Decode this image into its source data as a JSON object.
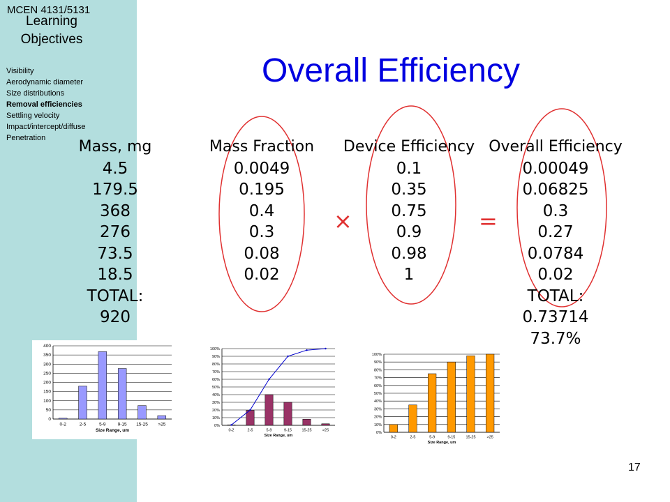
{
  "sidebar": {
    "course": "MCEN 4131/5131",
    "objectives_line1": "Learning",
    "objectives_line2": "Objectives",
    "items": [
      {
        "label": "Visibility",
        "active": false
      },
      {
        "label": "Aerodynamic diameter",
        "active": false
      },
      {
        "label": "Size distributions",
        "active": false
      },
      {
        "label": "Removal efficiencies",
        "active": true
      },
      {
        "label": "Settling velocity",
        "active": false
      },
      {
        "label": "Impact/intercept/diffuse",
        "active": false
      },
      {
        "label": "Penetration",
        "active": false
      }
    ]
  },
  "slide": {
    "title": "Overall Efficiency",
    "page_number": "17",
    "times_symbol": "×",
    "equals_symbol": "=",
    "columns": {
      "mass": {
        "header": "Mass, mg",
        "values": [
          "4.5",
          "179.5",
          "368",
          "276",
          "73.5",
          "18.5"
        ],
        "total_label": "TOTAL:",
        "total": "920"
      },
      "fraction": {
        "header": "Mass Fraction",
        "values": [
          "0.0049",
          "0.195",
          "0.4",
          "0.3",
          "0.08",
          "0.02"
        ]
      },
      "device": {
        "header": "Device Efficiency",
        "values": [
          "0.1",
          "0.35",
          "0.75",
          "0.9",
          "0.98",
          "1"
        ]
      },
      "overall": {
        "header": "Overall Efficiency",
        "values": [
          "0.00049",
          "0.06825",
          "0.3",
          "0.27",
          "0.0784",
          "0.02"
        ],
        "total_label": "TOTAL:",
        "total": "0.73714",
        "total_pct": "73.7%"
      }
    },
    "accent_color": "#0000e0",
    "ellipse_color": "#e03030"
  },
  "chart_data": [
    {
      "type": "bar",
      "categories": [
        "0-2",
        "2-5",
        "5-9",
        "9-15",
        "15-25",
        ">25"
      ],
      "values": [
        4.5,
        179.5,
        368,
        276,
        73.5,
        18.5
      ],
      "xlabel": "Size Range, um",
      "ylim": [
        0,
        400
      ],
      "yticks": [
        "0",
        "50",
        "100",
        "150",
        "200",
        "250",
        "300",
        "350",
        "400"
      ],
      "bar_color": "#9999ff",
      "grid": true
    },
    {
      "type": "bar",
      "categories": [
        "0-2",
        "2-5",
        "5-9",
        "9-15",
        "15-25",
        ">25"
      ],
      "values": [
        0.49,
        19.5,
        40,
        30,
        8,
        2
      ],
      "line": [
        0.49,
        20,
        60,
        90,
        98,
        100
      ],
      "xlabel": "Size Range, um",
      "ylim": [
        0,
        100
      ],
      "yticks": [
        "0%",
        "10%",
        "20%",
        "30%",
        "40%",
        "50%",
        "60%",
        "70%",
        "80%",
        "90%",
        "100%"
      ],
      "bar_color": "#993366",
      "line_color": "#0000cc",
      "grid": true
    },
    {
      "type": "bar",
      "categories": [
        "0-2",
        "2-5",
        "5-9",
        "9-15",
        "15-25",
        ">25"
      ],
      "values": [
        10,
        35,
        75,
        90,
        98,
        100
      ],
      "xlabel": "Size Range, um",
      "ylim": [
        0,
        100
      ],
      "yticks": [
        "0%",
        "10%",
        "20%",
        "30%",
        "40%",
        "50%",
        "60%",
        "70%",
        "80%",
        "90%",
        "100%"
      ],
      "bar_color": "#ff9900",
      "grid": true
    }
  ]
}
